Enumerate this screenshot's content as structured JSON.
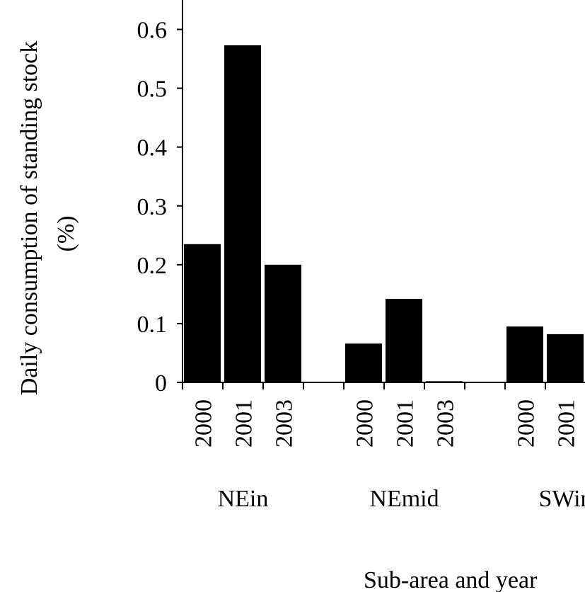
{
  "chart_data": {
    "type": "bar",
    "title": "",
    "ylabel": "Daily consumption of standing stock (%)",
    "ylabel_lines": [
      "Daily consumption of standing stock",
      "(%)"
    ],
    "xlabel": "Sub-area and year",
    "ylim": [
      0,
      0.65
    ],
    "yticks": [
      0,
      0.1,
      0.2,
      0.3,
      0.4,
      0.5,
      0.6
    ],
    "ytick_labels": [
      "0",
      "0.1",
      "0.2",
      "0.3",
      "0.4",
      "0.5",
      "0.6"
    ],
    "grid": false,
    "bar_color": "#000000",
    "groups": [
      {
        "name": "NEin",
        "categories": [
          "2000",
          "2001",
          "2003"
        ],
        "values": [
          0.235,
          0.573,
          0.2
        ]
      },
      {
        "name": "NEmid",
        "categories": [
          "2000",
          "2001",
          "2003"
        ],
        "values": [
          0.066,
          0.142,
          0.002
        ]
      },
      {
        "name": "SWin",
        "categories": [
          "2000",
          "2001"
        ],
        "values": [
          0.095,
          0.082
        ]
      }
    ]
  }
}
